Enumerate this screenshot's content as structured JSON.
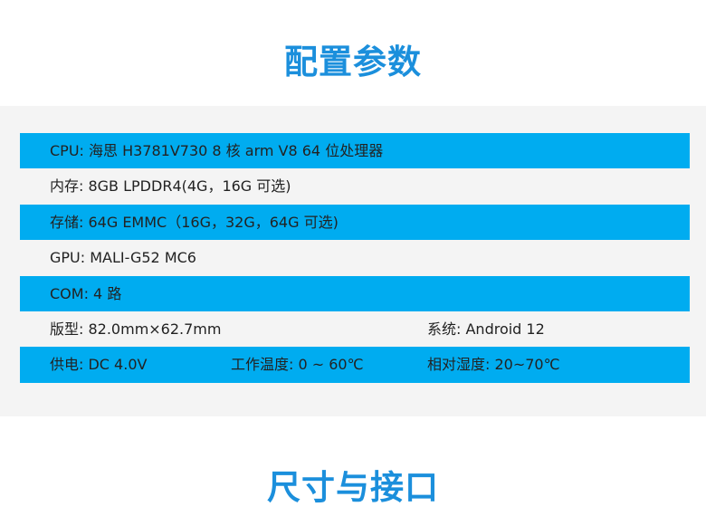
{
  "section1_title": "配置参数",
  "section2_title": "尺寸与接口",
  "colors": {
    "accent_blue": "#00acf0",
    "title_blue": "#1b8fdc",
    "band_gray": "#f4f4f4"
  },
  "specs": [
    {
      "cells": [
        "CPU:  海思 H3781V730 8 核 arm V8 64 位处理器"
      ]
    },
    {
      "cells": [
        "内存:  8GB LPDDR4(4G，16G 可选)"
      ]
    },
    {
      "cells": [
        "存储: 64G EMMC（16G，32G，64G 可选)"
      ]
    },
    {
      "cells": [
        "GPU:  MALI-G52 MC6"
      ]
    },
    {
      "cells": [
        "COM: 4 路"
      ]
    },
    {
      "cells": [
        "版型: 82.0mm×62.7mm",
        "",
        "系统: Android 12"
      ]
    },
    {
      "cells": [
        "供电: DC 4.0V",
        "工作温度:  0 ~ 60℃",
        "相对湿度: 20~70℃"
      ]
    }
  ]
}
